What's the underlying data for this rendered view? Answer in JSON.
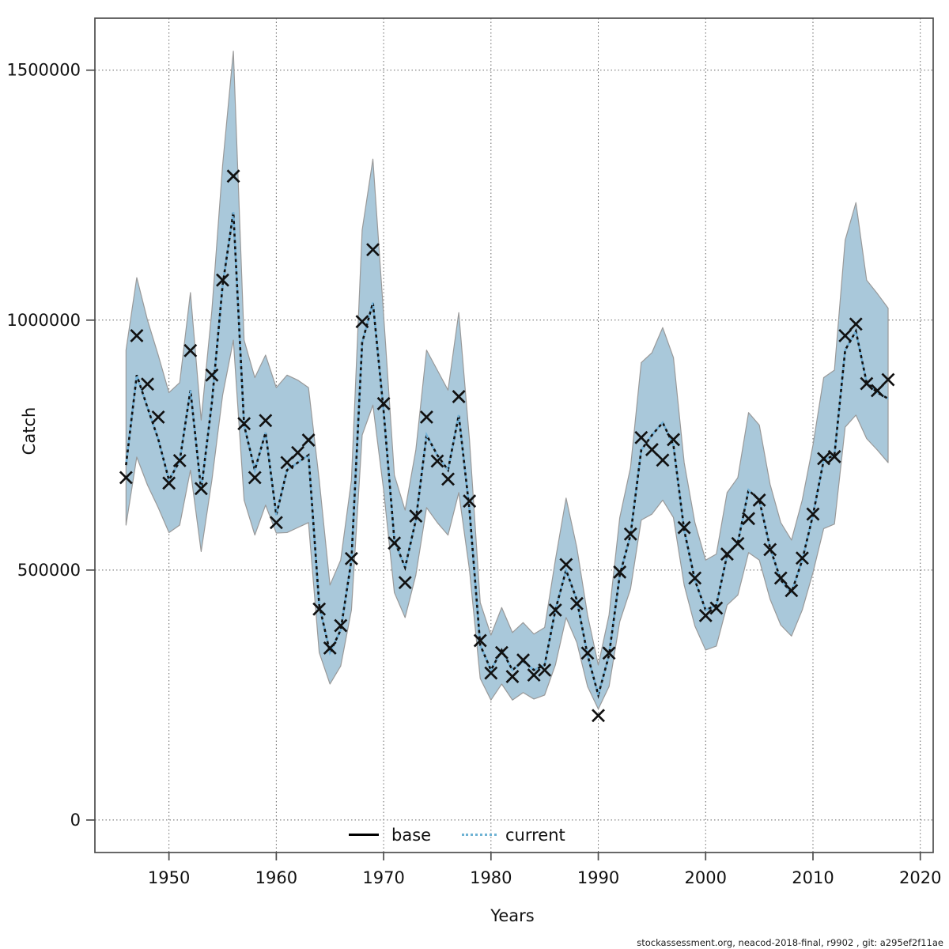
{
  "footer": "stockassessment.org, neacod-2018-final, r9902 , git: a295ef2f11ae",
  "legend": {
    "base_label": "base",
    "current_label": "current"
  },
  "colors": {
    "band_fill": "#a9c8da",
    "band_edge": "#999999",
    "current_blue": "#73b2d8",
    "line_black": "#111111",
    "grid": "#666666",
    "frame": "#4d4d4d",
    "marker": "#111111"
  },
  "chart_data": {
    "type": "line",
    "title": "",
    "xlabel": "Years",
    "ylabel": "Catch",
    "grid": true,
    "legend_position": "bottom-center-inside",
    "xlim": [
      1943.1,
      2021.2
    ],
    "ylim": [
      -65000,
      1604000
    ],
    "xticks": [
      1950,
      1960,
      1970,
      1980,
      1990,
      2000,
      2010,
      2020
    ],
    "xtick_labels": [
      "1950",
      "1960",
      "1970",
      "1980",
      "1990",
      "2000",
      "2010",
      "2020"
    ],
    "yticks": [
      0,
      500000,
      1000000,
      1500000
    ],
    "ytick_labels": [
      "0",
      "500000",
      "1000000",
      "1500000"
    ],
    "years": [
      1946,
      1947,
      1948,
      1949,
      1950,
      1951,
      1952,
      1953,
      1954,
      1955,
      1956,
      1957,
      1958,
      1959,
      1960,
      1961,
      1962,
      1963,
      1964,
      1965,
      1966,
      1967,
      1968,
      1969,
      1970,
      1971,
      1972,
      1973,
      1974,
      1975,
      1976,
      1977,
      1978,
      1979,
      1980,
      1981,
      1982,
      1983,
      1984,
      1985,
      1986,
      1987,
      1988,
      1989,
      1990,
      1991,
      1992,
      1993,
      1994,
      1995,
      1996,
      1997,
      1998,
      1999,
      2000,
      2001,
      2002,
      2003,
      2004,
      2005,
      2006,
      2007,
      2008,
      2009,
      2010,
      2011,
      2012,
      2013,
      2014,
      2015,
      2016,
      2017
    ],
    "series": [
      {
        "name": "observed_catch_markers",
        "style": "x-marker",
        "values": [
          685000,
          969000,
          872000,
          806000,
          674000,
          719000,
          939000,
          663000,
          890000,
          1080000,
          1288000,
          793000,
          685000,
          799000,
          595000,
          715000,
          735000,
          760000,
          422000,
          344000,
          389000,
          523000,
          997000,
          1141000,
          833000,
          554000,
          475000,
          608000,
          806000,
          718000,
          682000,
          847000,
          638000,
          359000,
          294000,
          335000,
          287000,
          320000,
          290000,
          300000,
          420000,
          511000,
          433000,
          334000,
          209000,
          334000,
          496000,
          572000,
          765000,
          741000,
          720000,
          761000,
          585000,
          484000,
          409000,
          424000,
          532000,
          553000,
          603000,
          640000,
          541000,
          484000,
          459000,
          524000,
          612000,
          723000,
          727000,
          969000,
          992000,
          873000,
          859000,
          881000
        ]
      },
      {
        "name": "current",
        "style": "dotted-line",
        "values": [
          710000,
          890000,
          825000,
          762000,
          680000,
          718000,
          860000,
          660000,
          835000,
          1070000,
          1216000,
          790000,
          700000,
          775000,
          610000,
          700000,
          715000,
          730000,
          430000,
          335000,
          380000,
          520000,
          955000,
          1035000,
          818000,
          560000,
          505000,
          600000,
          770000,
          730000,
          700000,
          810000,
          620000,
          350000,
          300000,
          340000,
          300000,
          318000,
          300000,
          310000,
          420000,
          500000,
          440000,
          330000,
          250000,
          330000,
          490000,
          570000,
          740000,
          770000,
          795000,
          750000,
          580000,
          480000,
          420000,
          430000,
          530000,
          555000,
          660000,
          640000,
          545000,
          480000,
          455000,
          520000,
          610000,
          720000,
          730000,
          940000,
          978000,
          875000,
          855000,
          843000
        ]
      },
      {
        "name": "confidence_band_low",
        "style": "band-lower",
        "values": [
          590000,
          726000,
          670000,
          625000,
          575000,
          590000,
          700000,
          537000,
          680000,
          850000,
          960000,
          640000,
          570000,
          630000,
          574000,
          575000,
          585000,
          595000,
          335000,
          272000,
          308000,
          420000,
          770000,
          830000,
          660000,
          455000,
          405000,
          490000,
          625000,
          595000,
          570000,
          655000,
          500000,
          283000,
          240000,
          272000,
          240000,
          255000,
          242000,
          250000,
          310000,
          405000,
          355000,
          267000,
          222000,
          267000,
          397000,
          462000,
          600000,
          612000,
          640000,
          605000,
          470000,
          388000,
          340000,
          348000,
          430000,
          450000,
          535000,
          520000,
          442000,
          390000,
          368000,
          420000,
          495000,
          583000,
          592000,
          786000,
          810000,
          763000,
          740000,
          715000
        ]
      },
      {
        "name": "confidence_band_high",
        "style": "band-upper",
        "values": [
          940000,
          1085000,
          1000000,
          930000,
          855000,
          875000,
          1055000,
          800000,
          1020000,
          1310000,
          1538000,
          960000,
          885000,
          930000,
          865000,
          890000,
          880000,
          865000,
          680000,
          470000,
          520000,
          680000,
          1180000,
          1322000,
          1010000,
          690000,
          620000,
          740000,
          940000,
          900000,
          860000,
          1015000,
          760000,
          435000,
          370000,
          425000,
          375000,
          395000,
          372000,
          385000,
          520000,
          644000,
          545000,
          410000,
          310000,
          410000,
          605000,
          705000,
          915000,
          935000,
          985000,
          925000,
          715000,
          595000,
          520000,
          532000,
          655000,
          685000,
          815000,
          790000,
          672000,
          595000,
          560000,
          640000,
          750000,
          885000,
          900000,
          1160000,
          1235000,
          1080000,
          1053000,
          1024000
        ]
      }
    ],
    "legend_entries": [
      {
        "label": "base",
        "style": "solid-black-line"
      },
      {
        "label": "current",
        "style": "dotted-blue-line"
      }
    ]
  }
}
